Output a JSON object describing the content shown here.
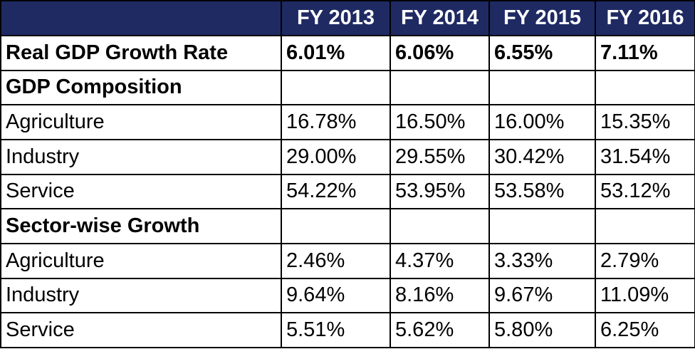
{
  "chart_data": {
    "type": "table",
    "columns": [
      "",
      "FY 2013",
      "FY 2014",
      "FY 2015",
      "FY 2016"
    ],
    "rows": [
      {
        "label": "Real GDP Growth Rate",
        "bold": true,
        "values": [
          "6.01%",
          "6.06%",
          "6.55%",
          "7.11%"
        ]
      },
      {
        "label": "GDP Composition",
        "bold": true,
        "values": [
          "",
          "",
          "",
          ""
        ]
      },
      {
        "label": "Agriculture",
        "bold": false,
        "values": [
          "16.78%",
          "16.50%",
          "16.00%",
          "15.35%"
        ]
      },
      {
        "label": "Industry",
        "bold": false,
        "values": [
          "29.00%",
          "29.55%",
          "30.42%",
          "31.54%"
        ]
      },
      {
        "label": "Service",
        "bold": false,
        "values": [
          "54.22%",
          "53.95%",
          "53.58%",
          "53.12%"
        ]
      },
      {
        "label": "Sector-wise Growth",
        "bold": true,
        "values": [
          "",
          "",
          "",
          ""
        ]
      },
      {
        "label": "Agriculture",
        "bold": false,
        "values": [
          "2.46%",
          "4.37%",
          "3.33%",
          "2.79%"
        ]
      },
      {
        "label": "Industry",
        "bold": false,
        "values": [
          "9.64%",
          "8.16%",
          "9.67%",
          "11.09%"
        ]
      },
      {
        "label": "Service",
        "bold": false,
        "values": [
          "5.51%",
          "5.62%",
          "5.80%",
          "6.25%"
        ]
      }
    ],
    "header_color": "#1f2a63",
    "header_text_color": "#ffffff",
    "border_color": "#000000"
  }
}
